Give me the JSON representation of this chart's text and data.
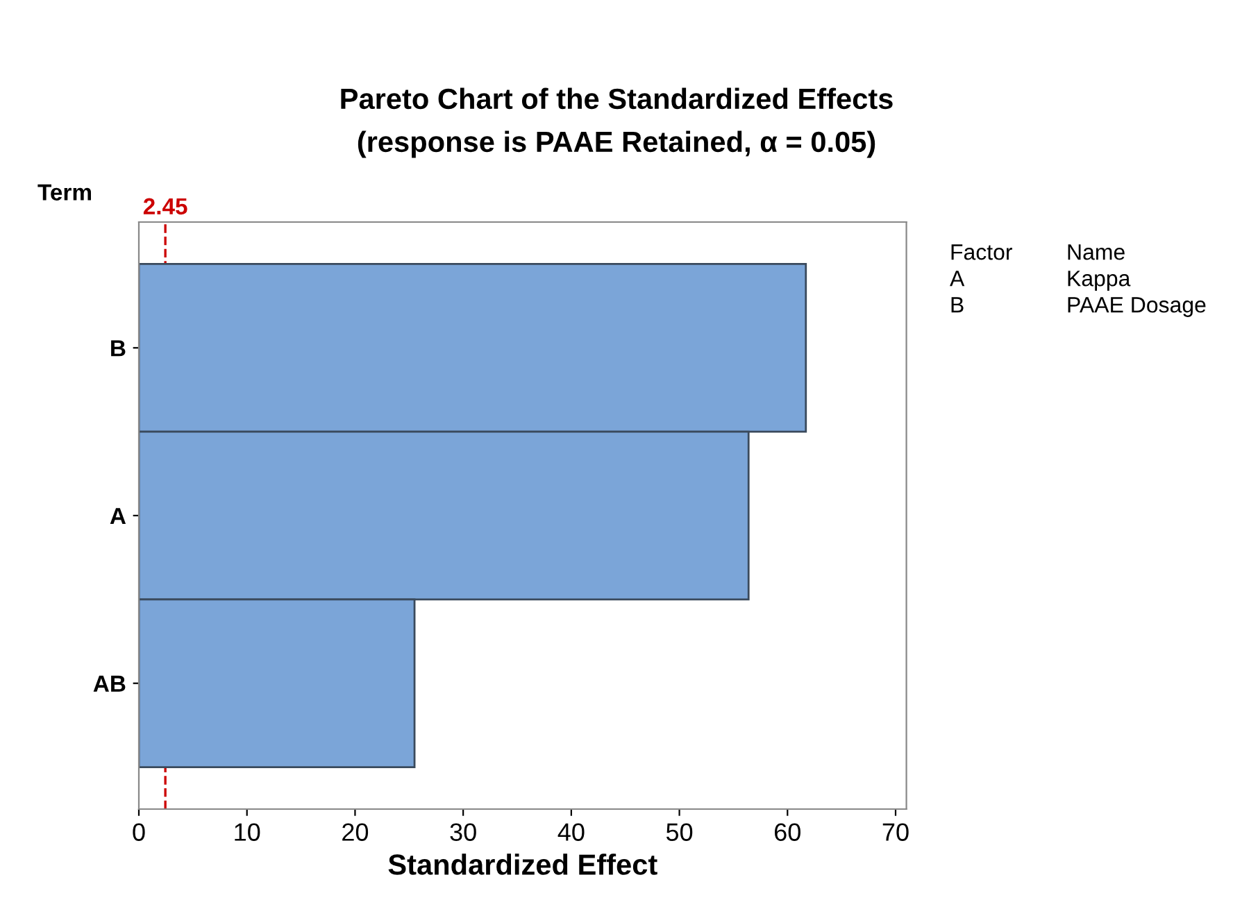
{
  "chart_data": {
    "type": "bar",
    "orientation": "horizontal",
    "title": "Pareto Chart of the Standardized Effects",
    "subtitle": "(response is PAAE Retained, α = 0.05)",
    "xlabel": "Standardized Effect",
    "ylabel": "Term",
    "categories": [
      "B",
      "A",
      "AB"
    ],
    "values": [
      61.7,
      56.4,
      25.5
    ],
    "color": "#7ba5d8",
    "xlim": [
      0,
      71
    ],
    "xticks": [
      0,
      10,
      20,
      30,
      40,
      50,
      60,
      70
    ],
    "ref_lines": [
      {
        "axis": "x",
        "value": 2.45,
        "label": "2.45",
        "color": "#cc0000",
        "line_style": "dashed"
      }
    ],
    "annotations": [
      "Factor",
      "Name",
      "A",
      "Kappa",
      "B",
      "PAAE Dosage"
    ],
    "grid": false,
    "legend": false
  }
}
